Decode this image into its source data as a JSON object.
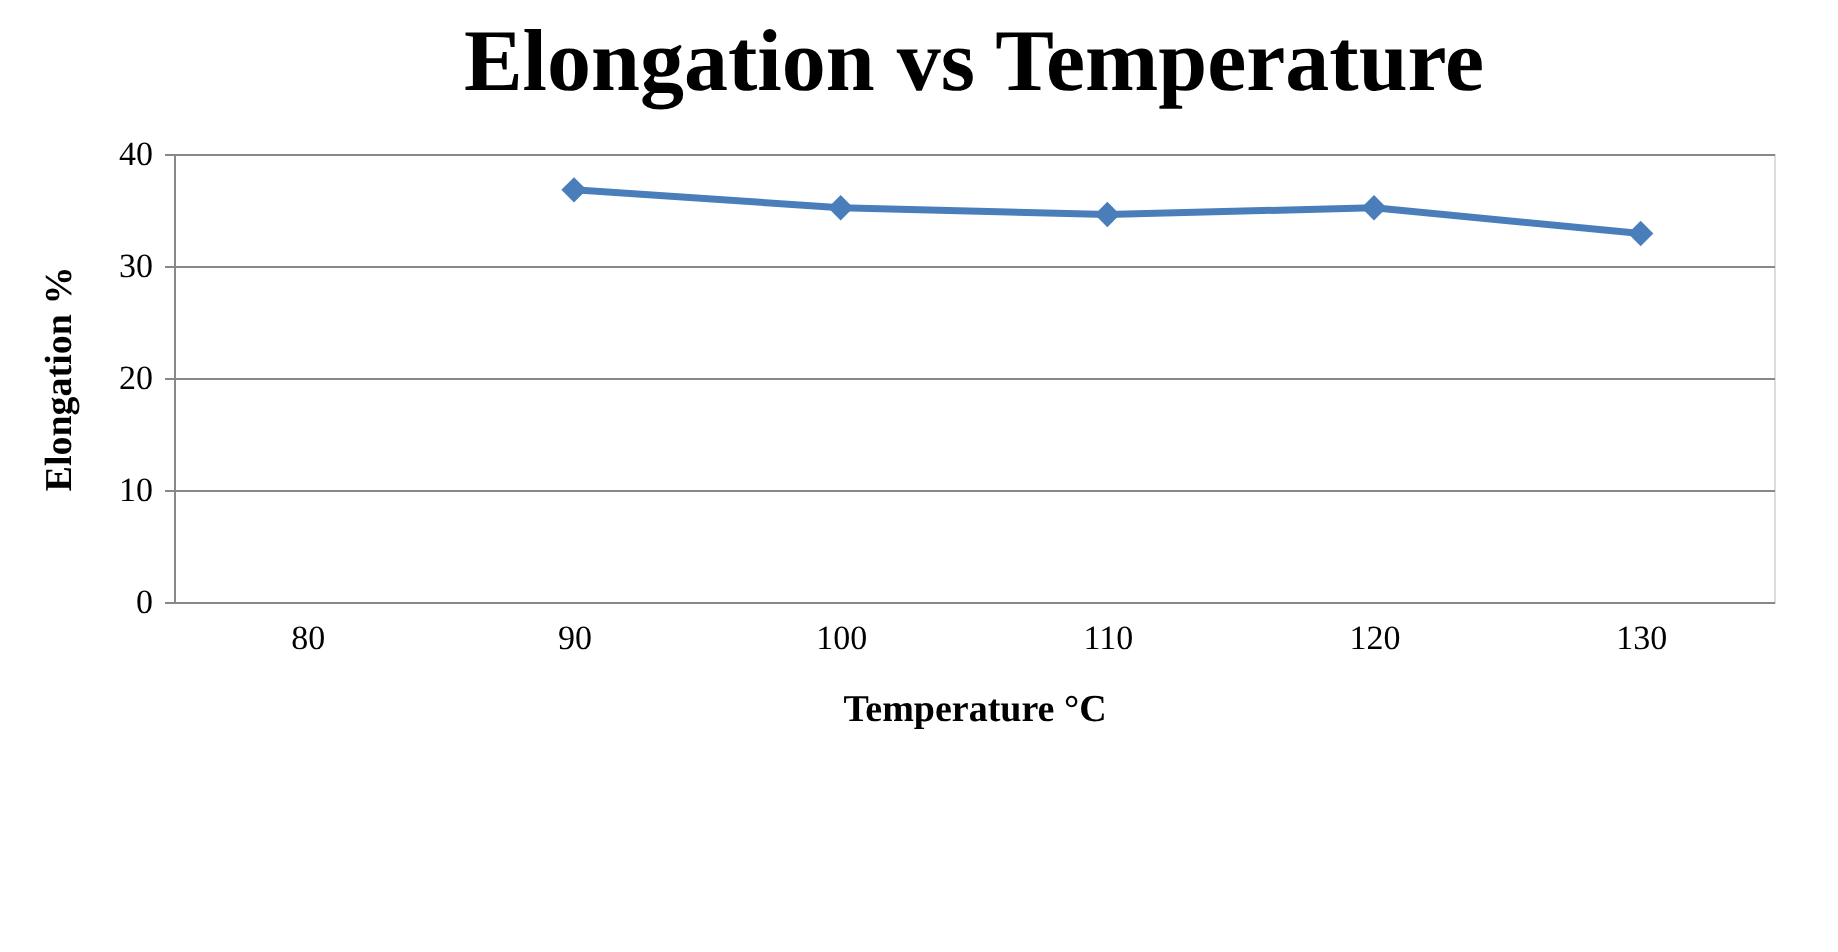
{
  "chart_data": {
    "type": "line",
    "title": "Elongation vs Temperature",
    "xlabel": "Temperature °C",
    "ylabel": "Elongation %",
    "categories": [
      "80",
      "90",
      "100",
      "110",
      "120",
      "130"
    ],
    "series": [
      {
        "color": "#4a7ebb",
        "values": [
          null,
          36.8,
          35.2,
          34.6,
          35.2,
          32.9
        ]
      }
    ],
    "ylim": [
      0,
      40
    ],
    "yticks": [
      0,
      10,
      20,
      30,
      40
    ],
    "grid": "y",
    "marker": "diamond",
    "line_style": "solid"
  }
}
